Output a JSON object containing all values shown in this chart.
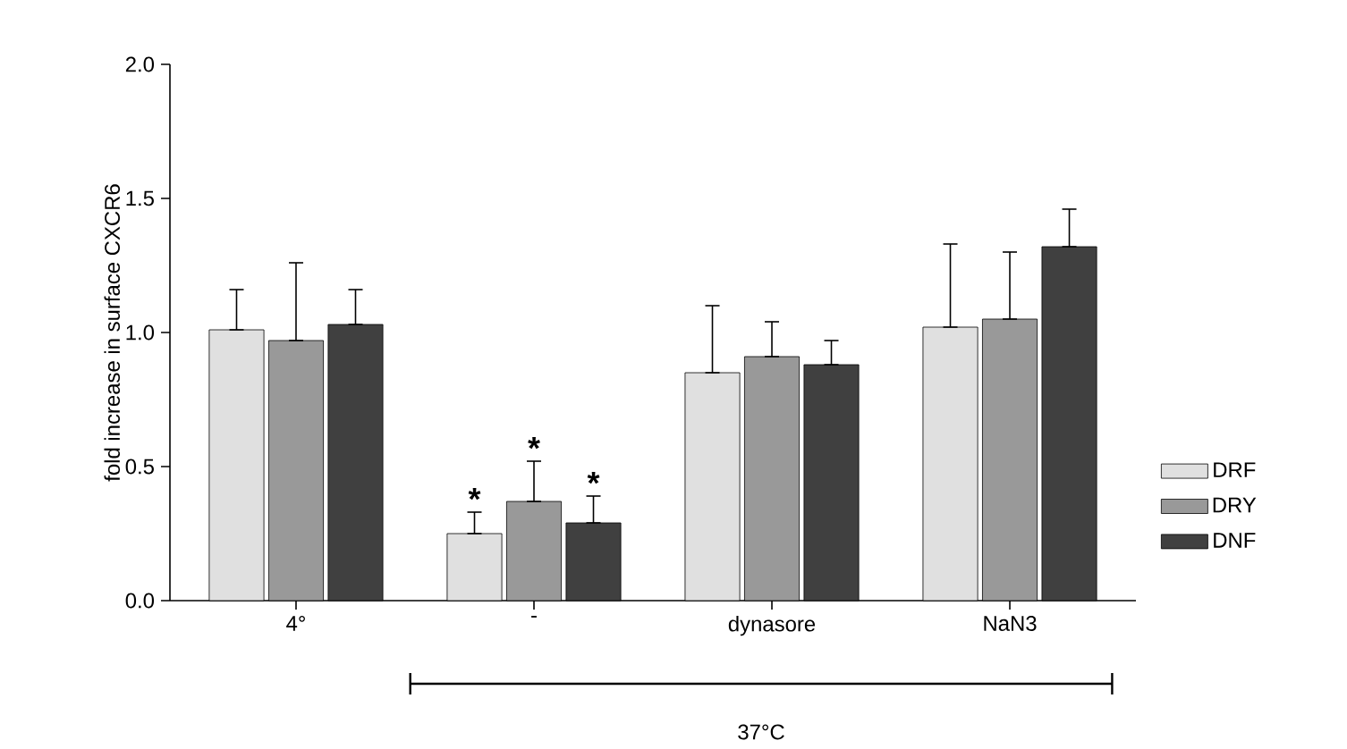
{
  "chart_data": {
    "type": "bar",
    "ylabel": "fold increase in surface CXCR6",
    "categories": [
      "4°",
      "-",
      "dynasore",
      "NaN3"
    ],
    "series": [
      {
        "name": "DRF",
        "color": "#e0e0e0",
        "values": [
          1.01,
          0.25,
          0.85,
          1.02
        ],
        "errors": [
          [
            1.01,
            1.16
          ],
          [
            0.25,
            0.33
          ],
          [
            0.85,
            1.1
          ],
          [
            1.02,
            1.33
          ]
        ]
      },
      {
        "name": "DRY",
        "color": "#999999",
        "values": [
          0.97,
          0.37,
          0.91,
          1.05
        ],
        "errors": [
          [
            0.97,
            1.26
          ],
          [
            0.37,
            0.52
          ],
          [
            0.91,
            1.04
          ],
          [
            1.05,
            1.3
          ]
        ]
      },
      {
        "name": "DNF",
        "color": "#404040",
        "values": [
          1.03,
          0.29,
          0.88,
          1.32
        ],
        "errors": [
          [
            1.03,
            1.16
          ],
          [
            0.29,
            0.39
          ],
          [
            0.88,
            0.97
          ],
          [
            1.32,
            1.46
          ]
        ]
      }
    ],
    "ylim": [
      0,
      2
    ],
    "yticks": [
      {
        "value": 0,
        "label": "0.0"
      },
      {
        "value": 0.5,
        "label": "0.5"
      },
      {
        "value": 1,
        "label": "1.0"
      },
      {
        "value": 1.5,
        "label": "1.5"
      },
      {
        "value": 2,
        "label": "2.0"
      }
    ],
    "legend": "right",
    "grid": false,
    "annotations": [
      "*",
      "*",
      "*",
      "37°C"
    ]
  }
}
